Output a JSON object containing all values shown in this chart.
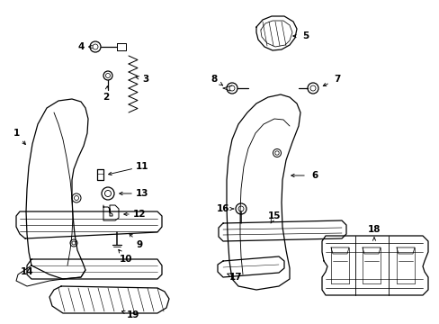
{
  "background_color": "#ffffff",
  "line_color": "#000000",
  "fig_width": 4.89,
  "fig_height": 3.6,
  "dpi": 100,
  "label_fontsize": 7.5,
  "lw": 0.9
}
